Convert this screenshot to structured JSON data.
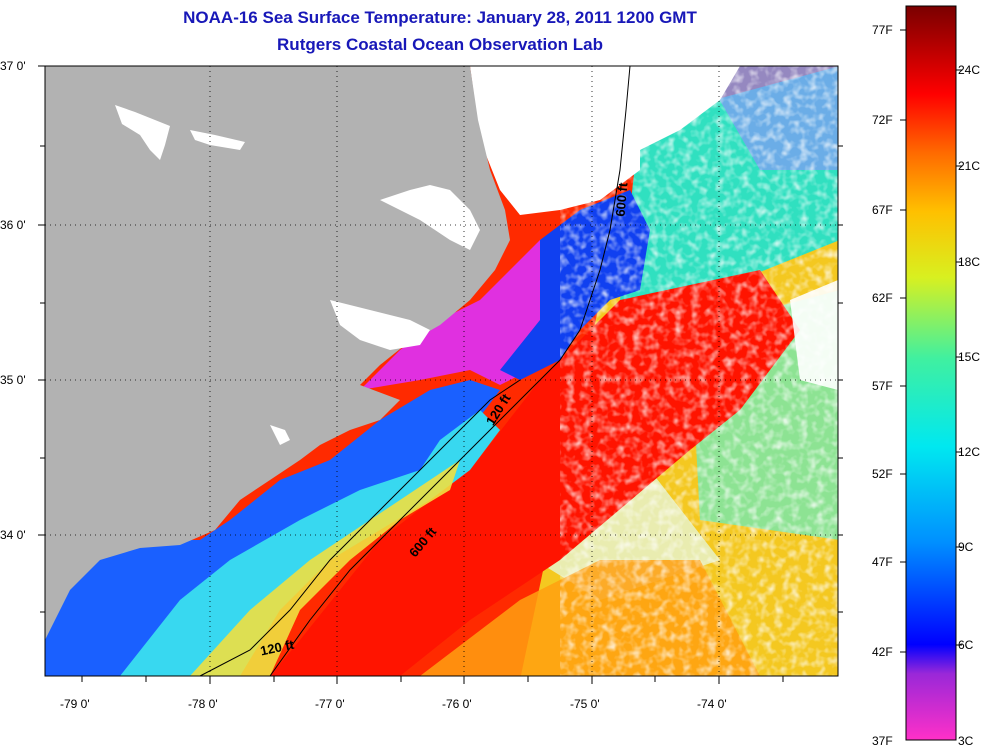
{
  "title": "NOAA-16 Sea Surface Temperature:  January 28, 2011 1200 GMT",
  "subtitle": "Rutgers Coastal Ocean Observation Lab",
  "lat_labels": [
    "37 0'",
    "36 0'",
    "35 0'",
    "34 0'"
  ],
  "lon_labels": [
    "-79 0'",
    "-78 0'",
    "-77 0'",
    "-76 0'",
    "-75 0'",
    "-74 0'"
  ],
  "contours": [
    {
      "label": "600 ft",
      "location": "upper",
      "depth_ft": 600
    },
    {
      "label": "120 ft",
      "location": "middle",
      "depth_ft": 120
    },
    {
      "label": "600 ft",
      "location": "lower",
      "depth_ft": 600
    },
    {
      "label": "120 ft",
      "location": "bottom",
      "depth_ft": 120
    }
  ],
  "colorbar": {
    "fahrenheit_labels": [
      "77F",
      "72F",
      "67F",
      "62F",
      "57F",
      "52F",
      "47F",
      "42F",
      "37F"
    ],
    "celsius_labels": [
      "24C",
      "21C",
      "18C",
      "15C",
      "12C",
      "9C",
      "6C",
      "3C"
    ],
    "range_celsius": [
      3,
      25
    ],
    "colors": [
      "#ff30c8",
      "#9a28d8",
      "#0000ff",
      "#0090ff",
      "#00e8f0",
      "#40f0a0",
      "#d8f020",
      "#ffc000",
      "#ff6a00",
      "#ff0000",
      "#b00000",
      "#7a0000"
    ]
  },
  "colors": {
    "title": "#1818b8",
    "land": "#b2b2b2",
    "no_data": "#ffffff"
  }
}
